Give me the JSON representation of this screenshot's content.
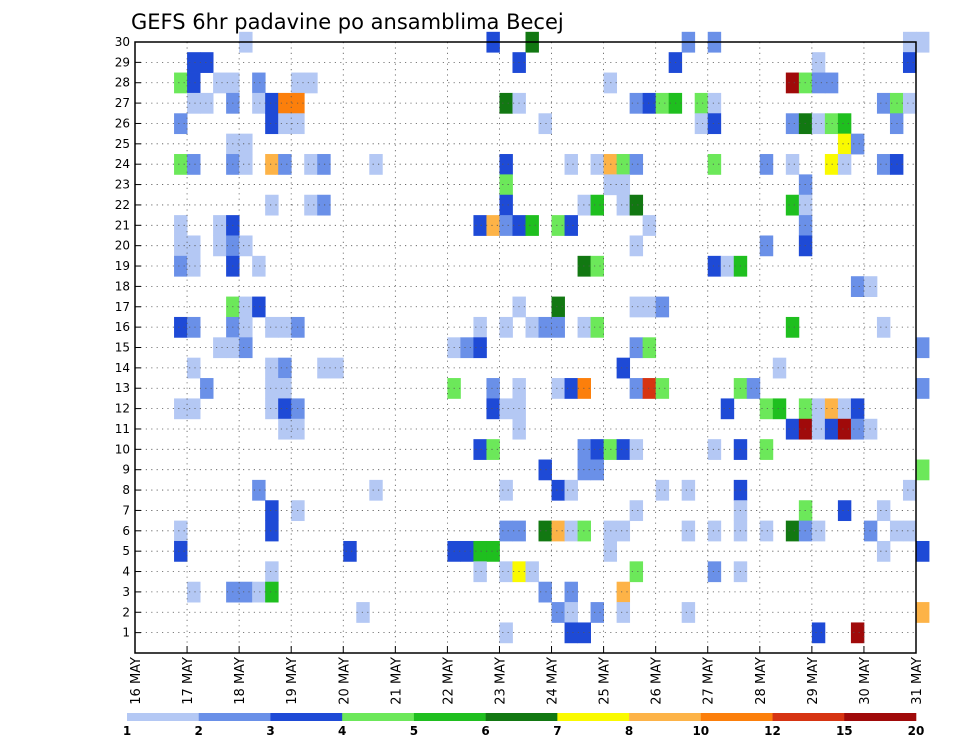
{
  "chart_data": {
    "type": "heatmap",
    "title": "GEFS 6hr padavine po ansamblima Becej",
    "xlabel": "",
    "ylabel": "",
    "x_tick_labels": [
      "16 MAY",
      "17 MAY",
      "18 MAY",
      "19 MAY",
      "20 MAY",
      "21 MAY",
      "22 MAY",
      "23 MAY",
      "24 MAY",
      "25 MAY",
      "26 MAY",
      "27 MAY",
      "28 MAY",
      "29 MAY",
      "30 MAY",
      "31 MAY"
    ],
    "x_range": [
      "16 MAY 00Z",
      "31 MAY 00Z"
    ],
    "time_step_hours": 6,
    "y_ticks": [
      1,
      2,
      3,
      4,
      5,
      6,
      7,
      8,
      9,
      10,
      11,
      12,
      13,
      14,
      15,
      16,
      17,
      18,
      19,
      20,
      21,
      22,
      23,
      24,
      25,
      26,
      27,
      28,
      29,
      30
    ],
    "y_range": [
      0,
      30
    ],
    "grid": true,
    "colorbar": {
      "ticks": [
        "1",
        "2",
        "3",
        "4",
        "5",
        "6",
        "7",
        "8",
        "10",
        "12",
        "15",
        "20"
      ],
      "colors": [
        "#b4c8f4",
        "#6a90e8",
        "#1e4ad6",
        "#6ce85a",
        "#1fbf1f",
        "#127812",
        "#fafa00",
        "#fdb347",
        "#fc7f0b",
        "#d63412",
        "#a00a0a"
      ]
    },
    "cells": [
      [
        8,
        30,
        1
      ],
      [
        27,
        30,
        3
      ],
      [
        30,
        30,
        6
      ],
      [
        42,
        30,
        2
      ],
      [
        44,
        30,
        2
      ],
      [
        59,
        30,
        1
      ],
      [
        60,
        30,
        1
      ],
      [
        72,
        30,
        1
      ],
      [
        73,
        30,
        1
      ],
      [
        4,
        29,
        3
      ],
      [
        5,
        29,
        3
      ],
      [
        29,
        29,
        3
      ],
      [
        41,
        29,
        3
      ],
      [
        52,
        29,
        1
      ],
      [
        59,
        29,
        3
      ],
      [
        3,
        28,
        4
      ],
      [
        4,
        28,
        3
      ],
      [
        6,
        28,
        1
      ],
      [
        7,
        28,
        1
      ],
      [
        9,
        28,
        2
      ],
      [
        12,
        28,
        1
      ],
      [
        13,
        28,
        1
      ],
      [
        36,
        28,
        1
      ],
      [
        50,
        28,
        11
      ],
      [
        51,
        28,
        4
      ],
      [
        52,
        28,
        2
      ],
      [
        53,
        28,
        2
      ],
      [
        4,
        27,
        1
      ],
      [
        5,
        27,
        1
      ],
      [
        7,
        27,
        2
      ],
      [
        9,
        27,
        1
      ],
      [
        10,
        27,
        3
      ],
      [
        11,
        27,
        9
      ],
      [
        12,
        27,
        9
      ],
      [
        28,
        27,
        6
      ],
      [
        29,
        27,
        1
      ],
      [
        38,
        27,
        2
      ],
      [
        39,
        27,
        3
      ],
      [
        40,
        27,
        4
      ],
      [
        41,
        27,
        5
      ],
      [
        43,
        27,
        4
      ],
      [
        44,
        27,
        1
      ],
      [
        57,
        27,
        2
      ],
      [
        58,
        27,
        4
      ],
      [
        59,
        27,
        1
      ],
      [
        3,
        26,
        2
      ],
      [
        10,
        26,
        3
      ],
      [
        11,
        26,
        1
      ],
      [
        12,
        26,
        1
      ],
      [
        31,
        26,
        1
      ],
      [
        43,
        26,
        1
      ],
      [
        44,
        26,
        3
      ],
      [
        50,
        26,
        2
      ],
      [
        51,
        26,
        6
      ],
      [
        52,
        26,
        1
      ],
      [
        53,
        26,
        4
      ],
      [
        54,
        26,
        5
      ],
      [
        58,
        26,
        2
      ],
      [
        7,
        25,
        1
      ],
      [
        8,
        25,
        1
      ],
      [
        54,
        25,
        7
      ],
      [
        55,
        25,
        2
      ],
      [
        3,
        24,
        4
      ],
      [
        4,
        24,
        2
      ],
      [
        7,
        24,
        2
      ],
      [
        8,
        24,
        1
      ],
      [
        10,
        24,
        8
      ],
      [
        11,
        24,
        2
      ],
      [
        13,
        24,
        1
      ],
      [
        14,
        24,
        2
      ],
      [
        18,
        24,
        1
      ],
      [
        28,
        24,
        3
      ],
      [
        33,
        24,
        1
      ],
      [
        35,
        24,
        1
      ],
      [
        36,
        24,
        8
      ],
      [
        37,
        24,
        4
      ],
      [
        38,
        24,
        2
      ],
      [
        44,
        24,
        4
      ],
      [
        48,
        24,
        2
      ],
      [
        50,
        24,
        1
      ],
      [
        53,
        24,
        7
      ],
      [
        54,
        24,
        1
      ],
      [
        57,
        24,
        2
      ],
      [
        58,
        24,
        3
      ],
      [
        28,
        23,
        4
      ],
      [
        36,
        23,
        1
      ],
      [
        37,
        23,
        1
      ],
      [
        51,
        23,
        2
      ],
      [
        10,
        22,
        1
      ],
      [
        13,
        22,
        1
      ],
      [
        14,
        22,
        2
      ],
      [
        28,
        22,
        3
      ],
      [
        34,
        22,
        1
      ],
      [
        35,
        22,
        5
      ],
      [
        37,
        22,
        1
      ],
      [
        38,
        22,
        6
      ],
      [
        50,
        22,
        5
      ],
      [
        51,
        22,
        1
      ],
      [
        3,
        21,
        1
      ],
      [
        6,
        21,
        1
      ],
      [
        7,
        21,
        3
      ],
      [
        26,
        21,
        3
      ],
      [
        27,
        21,
        8
      ],
      [
        28,
        21,
        2
      ],
      [
        29,
        21,
        3
      ],
      [
        30,
        21,
        5
      ],
      [
        32,
        21,
        4
      ],
      [
        33,
        21,
        3
      ],
      [
        39,
        21,
        1
      ],
      [
        51,
        21,
        2
      ],
      [
        3,
        20,
        1
      ],
      [
        4,
        20,
        1
      ],
      [
        6,
        20,
        1
      ],
      [
        7,
        20,
        2
      ],
      [
        8,
        20,
        1
      ],
      [
        38,
        20,
        1
      ],
      [
        48,
        20,
        2
      ],
      [
        51,
        20,
        3
      ],
      [
        3,
        19,
        2
      ],
      [
        4,
        19,
        1
      ],
      [
        7,
        19,
        3
      ],
      [
        9,
        19,
        1
      ],
      [
        34,
        19,
        6
      ],
      [
        35,
        19,
        4
      ],
      [
        44,
        19,
        3
      ],
      [
        45,
        19,
        1
      ],
      [
        46,
        19,
        5
      ],
      [
        55,
        18,
        2
      ],
      [
        56,
        18,
        1
      ],
      [
        7,
        17,
        4
      ],
      [
        8,
        17,
        1
      ],
      [
        9,
        17,
        3
      ],
      [
        29,
        17,
        1
      ],
      [
        32,
        17,
        6
      ],
      [
        38,
        17,
        1
      ],
      [
        39,
        17,
        1
      ],
      [
        40,
        17,
        2
      ],
      [
        3,
        16,
        3
      ],
      [
        4,
        16,
        2
      ],
      [
        7,
        16,
        2
      ],
      [
        8,
        16,
        1
      ],
      [
        10,
        16,
        1
      ],
      [
        11,
        16,
        1
      ],
      [
        12,
        16,
        2
      ],
      [
        26,
        16,
        1
      ],
      [
        28,
        16,
        1
      ],
      [
        30,
        16,
        1
      ],
      [
        31,
        16,
        2
      ],
      [
        32,
        16,
        2
      ],
      [
        34,
        16,
        1
      ],
      [
        35,
        16,
        4
      ],
      [
        50,
        16,
        5
      ],
      [
        57,
        16,
        1
      ],
      [
        6,
        15,
        1
      ],
      [
        7,
        15,
        1
      ],
      [
        8,
        15,
        2
      ],
      [
        24,
        15,
        1
      ],
      [
        25,
        15,
        2
      ],
      [
        26,
        15,
        3
      ],
      [
        38,
        15,
        2
      ],
      [
        39,
        15,
        4
      ],
      [
        60,
        15,
        2
      ],
      [
        4,
        14,
        1
      ],
      [
        10,
        14,
        1
      ],
      [
        11,
        14,
        2
      ],
      [
        14,
        14,
        1
      ],
      [
        15,
        14,
        1
      ],
      [
        37,
        14,
        3
      ],
      [
        49,
        14,
        1
      ],
      [
        5,
        13,
        2
      ],
      [
        10,
        13,
        1
      ],
      [
        11,
        13,
        1
      ],
      [
        24,
        13,
        4
      ],
      [
        27,
        13,
        2
      ],
      [
        29,
        13,
        1
      ],
      [
        32,
        13,
        1
      ],
      [
        33,
        13,
        3
      ],
      [
        34,
        13,
        9
      ],
      [
        38,
        13,
        2
      ],
      [
        39,
        13,
        10
      ],
      [
        40,
        13,
        4
      ],
      [
        46,
        13,
        4
      ],
      [
        47,
        13,
        2
      ],
      [
        60,
        13,
        2
      ],
      [
        3,
        12,
        1
      ],
      [
        4,
        12,
        1
      ],
      [
        10,
        12,
        1
      ],
      [
        11,
        12,
        3
      ],
      [
        12,
        12,
        2
      ],
      [
        27,
        12,
        3
      ],
      [
        28,
        12,
        1
      ],
      [
        29,
        12,
        1
      ],
      [
        45,
        12,
        3
      ],
      [
        48,
        12,
        4
      ],
      [
        49,
        12,
        5
      ],
      [
        51,
        12,
        4
      ],
      [
        52,
        12,
        1
      ],
      [
        53,
        12,
        8
      ],
      [
        54,
        12,
        1
      ],
      [
        55,
        12,
        3
      ],
      [
        11,
        11,
        1
      ],
      [
        12,
        11,
        1
      ],
      [
        29,
        11,
        1
      ],
      [
        50,
        11,
        3
      ],
      [
        51,
        11,
        11
      ],
      [
        52,
        11,
        1
      ],
      [
        53,
        11,
        3
      ],
      [
        54,
        11,
        11
      ],
      [
        55,
        11,
        2
      ],
      [
        56,
        11,
        1
      ],
      [
        26,
        10,
        3
      ],
      [
        27,
        10,
        4
      ],
      [
        34,
        10,
        2
      ],
      [
        35,
        10,
        3
      ],
      [
        36,
        10,
        4
      ],
      [
        37,
        10,
        3
      ],
      [
        38,
        10,
        1
      ],
      [
        44,
        10,
        1
      ],
      [
        46,
        10,
        3
      ],
      [
        48,
        10,
        4
      ],
      [
        31,
        9,
        3
      ],
      [
        34,
        9,
        2
      ],
      [
        35,
        9,
        2
      ],
      [
        60,
        9,
        4
      ],
      [
        9,
        8,
        2
      ],
      [
        18,
        8,
        1
      ],
      [
        28,
        8,
        1
      ],
      [
        32,
        8,
        3
      ],
      [
        33,
        8,
        1
      ],
      [
        40,
        8,
        1
      ],
      [
        42,
        8,
        1
      ],
      [
        46,
        8,
        3
      ],
      [
        59,
        8,
        1
      ],
      [
        10,
        7,
        3
      ],
      [
        12,
        7,
        1
      ],
      [
        38,
        7,
        1
      ],
      [
        46,
        7,
        1
      ],
      [
        51,
        7,
        4
      ],
      [
        54,
        7,
        3
      ],
      [
        57,
        7,
        1
      ],
      [
        3,
        6,
        1
      ],
      [
        10,
        6,
        3
      ],
      [
        28,
        6,
        2
      ],
      [
        29,
        6,
        2
      ],
      [
        31,
        6,
        6
      ],
      [
        32,
        6,
        8
      ],
      [
        33,
        6,
        1
      ],
      [
        34,
        6,
        4
      ],
      [
        36,
        6,
        1
      ],
      [
        37,
        6,
        1
      ],
      [
        42,
        6,
        1
      ],
      [
        44,
        6,
        1
      ],
      [
        46,
        6,
        1
      ],
      [
        48,
        6,
        1
      ],
      [
        50,
        6,
        6
      ],
      [
        51,
        6,
        2
      ],
      [
        52,
        6,
        1
      ],
      [
        56,
        6,
        2
      ],
      [
        58,
        6,
        1
      ],
      [
        59,
        6,
        1
      ],
      [
        3,
        5,
        3
      ],
      [
        16,
        5,
        3
      ],
      [
        24,
        5,
        3
      ],
      [
        25,
        5,
        3
      ],
      [
        26,
        5,
        5
      ],
      [
        27,
        5,
        5
      ],
      [
        36,
        5,
        1
      ],
      [
        57,
        5,
        1
      ],
      [
        60,
        5,
        3
      ],
      [
        10,
        4,
        1
      ],
      [
        26,
        4,
        1
      ],
      [
        28,
        4,
        1
      ],
      [
        29,
        4,
        7
      ],
      [
        30,
        4,
        1
      ],
      [
        38,
        4,
        4
      ],
      [
        44,
        4,
        2
      ],
      [
        46,
        4,
        1
      ],
      [
        4,
        3,
        1
      ],
      [
        7,
        3,
        2
      ],
      [
        8,
        3,
        2
      ],
      [
        9,
        3,
        1
      ],
      [
        10,
        3,
        5
      ],
      [
        31,
        3,
        2
      ],
      [
        33,
        3,
        2
      ],
      [
        37,
        3,
        8
      ],
      [
        17,
        2,
        1
      ],
      [
        32,
        2,
        2
      ],
      [
        33,
        2,
        1
      ],
      [
        35,
        2,
        2
      ],
      [
        37,
        2,
        1
      ],
      [
        42,
        2,
        1
      ],
      [
        60,
        2,
        8
      ],
      [
        28,
        1,
        1
      ],
      [
        33,
        1,
        3
      ],
      [
        34,
        1,
        3
      ],
      [
        52,
        1,
        3
      ],
      [
        55,
        1,
        11
      ]
    ]
  }
}
